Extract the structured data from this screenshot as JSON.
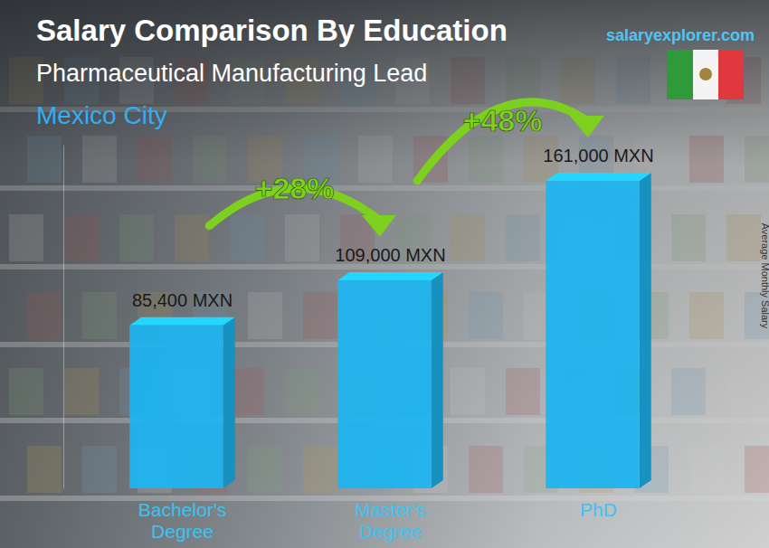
{
  "chart_data": {
    "type": "bar",
    "title": "Salary Comparison By Education",
    "subtitle": "Pharmaceutical Manufacturing Lead",
    "location": "Mexico City",
    "source": "salaryexplorer.com",
    "y_label": "Average Monthly Salary",
    "categories": [
      "Bachelor's Degree",
      "Master's Degree",
      "PhD"
    ],
    "values": [
      85400,
      109000,
      161000
    ],
    "value_labels": [
      "85,400 MXN",
      "109,000 MXN",
      "161,000 MXN"
    ],
    "annotations": [
      "+28%",
      "+48%"
    ],
    "color": "#1db4ee",
    "ylim": [
      0,
      180000
    ],
    "data_labels": true,
    "tick_labels": false,
    "grid": false
  }
}
